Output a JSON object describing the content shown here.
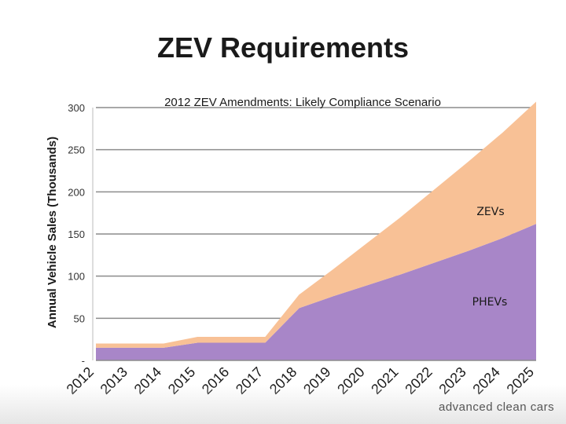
{
  "slide": {
    "title": "ZEV Requirements",
    "logo_text": "advanced clean cars"
  },
  "chart_data": {
    "type": "area",
    "stacked": true,
    "title": "2012 ZEV Amendments: Likely Compliance Scenario",
    "ylabel": "Annual Vehicle Sales (Thousands)",
    "xlabel": "",
    "x": [
      "2012",
      "2013",
      "2014",
      "2015",
      "2016",
      "2017",
      "2018",
      "2019",
      "2020",
      "2021",
      "2022",
      "2023",
      "2024",
      "2025"
    ],
    "ylim": [
      0,
      300
    ],
    "yticks": [
      {
        "value": 0,
        "label": "-"
      },
      {
        "value": 50,
        "label": "50"
      },
      {
        "value": 100,
        "label": "100"
      },
      {
        "value": 150,
        "label": "150"
      },
      {
        "value": 200,
        "label": "200"
      },
      {
        "value": 250,
        "label": "250"
      },
      {
        "value": 300,
        "label": "300"
      }
    ],
    "grid": true,
    "series": [
      {
        "name": "PHEVs",
        "color": "#a886c8",
        "values": [
          15,
          15,
          15,
          21,
          21,
          21,
          62,
          76,
          89,
          102,
          116,
          130,
          145,
          162
        ]
      },
      {
        "name": "ZEVs",
        "color": "#f8c196",
        "values": [
          5,
          5,
          5,
          7,
          7,
          7,
          16,
          32,
          50,
          68,
          87,
          106,
          125,
          145
        ]
      }
    ],
    "series_labels_position": "inside-areas"
  }
}
